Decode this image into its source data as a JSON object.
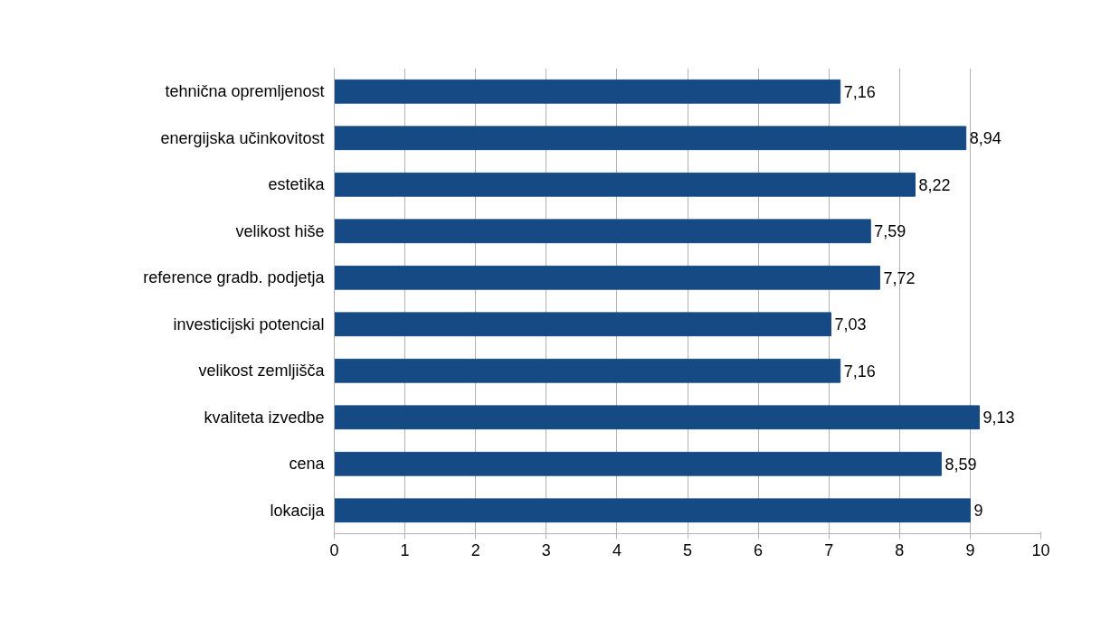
{
  "chart_data": {
    "type": "bar",
    "orientation": "horizontal",
    "categories": [
      "tehnična opremljenost",
      "energijska učinkovitost",
      "estetika",
      "velikost hiše",
      "reference gradb. podjetja",
      "investicijski potencial",
      "velikost zemljišča",
      "kvaliteta izvedbe",
      "cena",
      "lokacija"
    ],
    "values": [
      7.16,
      8.94,
      8.22,
      7.59,
      7.72,
      7.03,
      7.16,
      9.13,
      8.59,
      9
    ],
    "value_labels": [
      "7,16",
      "8,94",
      "8,22",
      "7,59",
      "7,72",
      "7,03",
      "7,16",
      "9,13",
      "8,59",
      "9"
    ],
    "color": "#164a84",
    "xlim": [
      0,
      10
    ],
    "xticks": [
      0,
      1,
      2,
      3,
      4,
      5,
      6,
      7,
      8,
      9,
      10
    ],
    "grid": "x"
  }
}
